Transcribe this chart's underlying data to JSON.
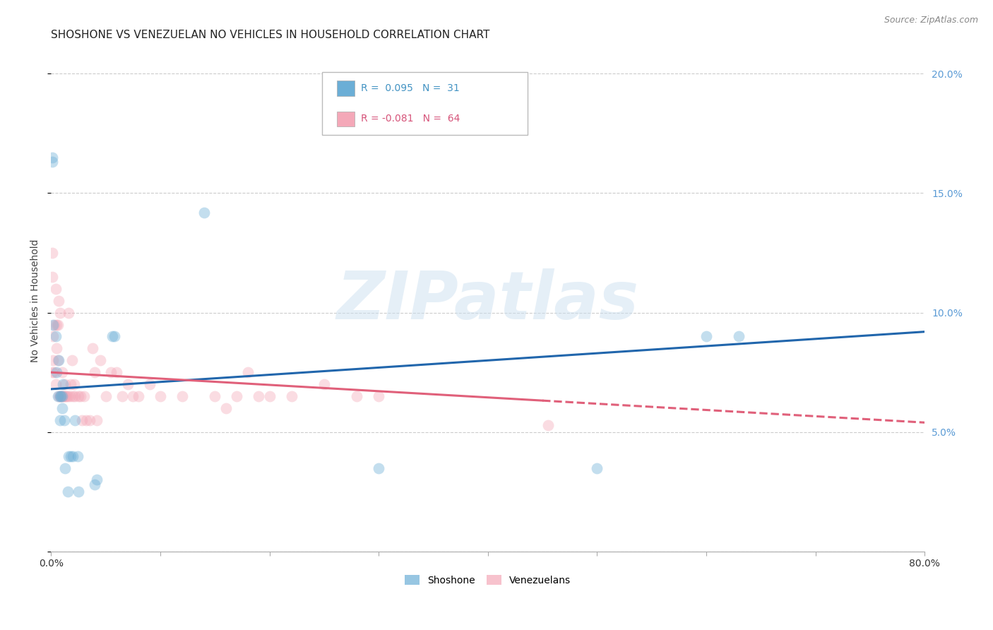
{
  "title": "SHOSHONE VS VENEZUELAN NO VEHICLES IN HOUSEHOLD CORRELATION CHART",
  "source": "Source: ZipAtlas.com",
  "ylabel": "No Vehicles in Household",
  "watermark": "ZIPatlas",
  "xlim": [
    0.0,
    0.8
  ],
  "ylim": [
    0.0,
    0.21
  ],
  "xticks": [
    0.0,
    0.1,
    0.2,
    0.3,
    0.4,
    0.5,
    0.6,
    0.7,
    0.8
  ],
  "xticklabels": [
    "0.0%",
    "",
    "",
    "",
    "",
    "",
    "",
    "",
    "80.0%"
  ],
  "yticks_right": [
    0.0,
    0.05,
    0.1,
    0.15,
    0.2
  ],
  "yticklabels_right": [
    "",
    "5.0%",
    "10.0%",
    "15.0%",
    "20.0%"
  ],
  "shoshone_color": "#6baed6",
  "venezuelan_color": "#f4a8b8",
  "shoshone_r": 0.095,
  "shoshone_n": 31,
  "venezuelan_r": -0.081,
  "venezuelan_n": 64,
  "shoshone_line_color": "#2166ac",
  "venezuelan_line_color": "#e0607a",
  "legend_label_shoshone": "Shoshone",
  "legend_label_venezuelan": "Venezuelans",
  "shoshone_line_x0": 0.0,
  "shoshone_line_y0": 0.068,
  "shoshone_line_x1": 0.8,
  "shoshone_line_y1": 0.092,
  "venezuelan_line_x0": 0.0,
  "venezuelan_line_y0": 0.075,
  "venezuelan_line_x1": 0.8,
  "venezuelan_line_y1": 0.054,
  "venezuelan_line_solid_end": 0.45,
  "shoshone_x": [
    0.001,
    0.002,
    0.004,
    0.005,
    0.006,
    0.007,
    0.008,
    0.008,
    0.009,
    0.01,
    0.01,
    0.011,
    0.012,
    0.013,
    0.015,
    0.016,
    0.018,
    0.02,
    0.022,
    0.024,
    0.025,
    0.04,
    0.042,
    0.056,
    0.058,
    0.6,
    0.63,
    0.14,
    0.001,
    0.3,
    0.5
  ],
  "shoshone_y": [
    0.165,
    0.095,
    0.09,
    0.075,
    0.065,
    0.08,
    0.065,
    0.055,
    0.065,
    0.065,
    0.06,
    0.07,
    0.055,
    0.035,
    0.025,
    0.04,
    0.04,
    0.04,
    0.055,
    0.04,
    0.025,
    0.028,
    0.03,
    0.09,
    0.09,
    0.09,
    0.09,
    0.142,
    0.163,
    0.035,
    0.035
  ],
  "venezuelan_x": [
    0.001,
    0.002,
    0.003,
    0.004,
    0.005,
    0.005,
    0.006,
    0.006,
    0.007,
    0.007,
    0.008,
    0.008,
    0.009,
    0.01,
    0.01,
    0.011,
    0.012,
    0.013,
    0.013,
    0.014,
    0.015,
    0.016,
    0.017,
    0.018,
    0.019,
    0.02,
    0.021,
    0.022,
    0.025,
    0.027,
    0.028,
    0.03,
    0.032,
    0.035,
    0.038,
    0.04,
    0.042,
    0.045,
    0.05,
    0.055,
    0.06,
    0.065,
    0.07,
    0.075,
    0.08,
    0.09,
    0.1,
    0.12,
    0.15,
    0.16,
    0.17,
    0.18,
    0.19,
    0.2,
    0.22,
    0.25,
    0.28,
    0.3,
    0.001,
    0.002,
    0.003,
    0.004,
    0.455,
    0.001
  ],
  "venezuelan_y": [
    0.125,
    0.09,
    0.095,
    0.11,
    0.085,
    0.095,
    0.095,
    0.08,
    0.105,
    0.065,
    0.1,
    0.065,
    0.065,
    0.065,
    0.075,
    0.065,
    0.065,
    0.065,
    0.07,
    0.065,
    0.065,
    0.1,
    0.065,
    0.07,
    0.08,
    0.065,
    0.07,
    0.065,
    0.065,
    0.065,
    0.055,
    0.065,
    0.055,
    0.055,
    0.085,
    0.075,
    0.055,
    0.08,
    0.065,
    0.075,
    0.075,
    0.065,
    0.07,
    0.065,
    0.065,
    0.07,
    0.065,
    0.065,
    0.065,
    0.06,
    0.065,
    0.075,
    0.065,
    0.065,
    0.065,
    0.07,
    0.065,
    0.065,
    0.075,
    0.08,
    0.075,
    0.07,
    0.053,
    0.115
  ],
  "marker_size": 130,
  "marker_alpha": 0.4,
  "grid_color": "#cccccc",
  "grid_linestyle": "--",
  "background_color": "#ffffff",
  "title_fontsize": 11,
  "axis_label_fontsize": 10,
  "tick_fontsize": 10,
  "legend_fontsize": 10,
  "r_fontsize": 10,
  "source_fontsize": 9
}
